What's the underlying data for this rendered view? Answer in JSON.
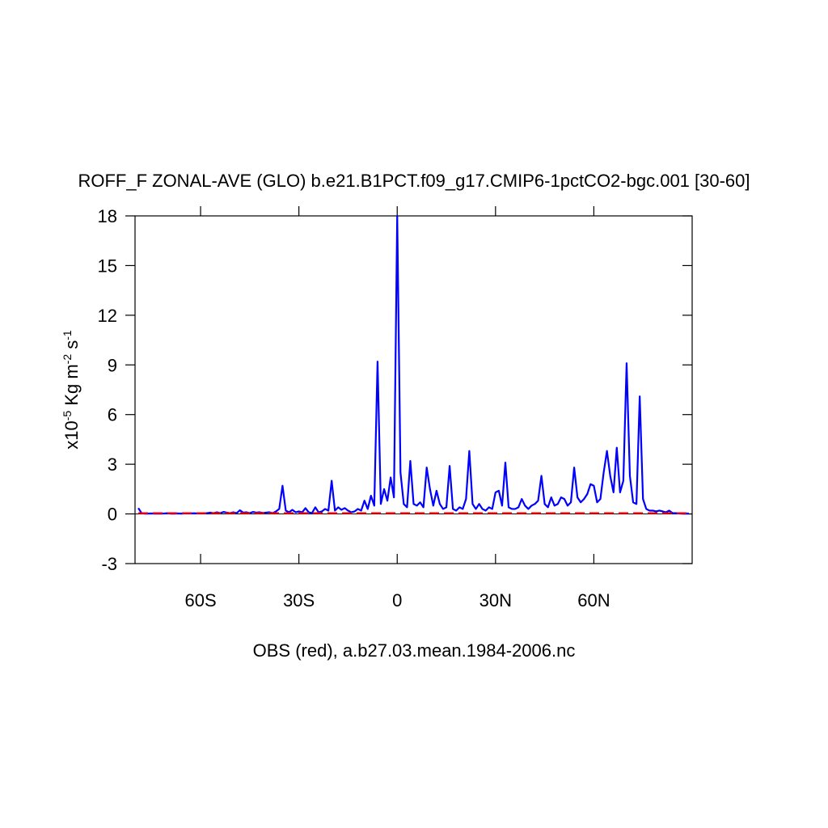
{
  "chart_data": {
    "type": "line",
    "title": "ROFF_F ZONAL-AVE (GLO) b.e21.B1PCT.f09_g17.CMIP6-1pctCO2-bgc.001 [30-60]",
    "xlabel": "OBS (red), a.b27.03.mean.1984-2006.nc",
    "ylabel": [
      "x10",
      "-5",
      " Kg m",
      "-2",
      " s",
      "-1"
    ],
    "xlim": [
      -80,
      90
    ],
    "ylim": [
      -3,
      18
    ],
    "xticks": [
      {
        "value": -60,
        "label": "60S"
      },
      {
        "value": -30,
        "label": "30S"
      },
      0,
      {
        "value": 30,
        "label": "30N"
      },
      {
        "value": 60,
        "label": "60N"
      }
    ],
    "yticks": [
      -3,
      0,
      3,
      6,
      9,
      12,
      15,
      18
    ],
    "series": [
      {
        "color": "#0000ff",
        "dash": false,
        "x": [
          -79,
          -78,
          -77,
          -76,
          -75,
          -74,
          -73,
          -72,
          -71,
          -70,
          -69,
          -68,
          -67,
          -66,
          -65,
          -64,
          -63,
          -62,
          -61,
          -60,
          -59,
          -58,
          -57,
          -56,
          -55,
          -54,
          -53,
          -52,
          -51,
          -50,
          -49,
          -48,
          -47,
          -46,
          -45,
          -44,
          -43,
          -42,
          -41,
          -40,
          -39,
          -38,
          -37,
          -36,
          -35,
          -34,
          -33,
          -32,
          -31,
          -30,
          -29,
          -28,
          -27,
          -26,
          -25,
          -24,
          -23,
          -22,
          -21,
          -20,
          -19,
          -18,
          -17,
          -16,
          -15,
          -14,
          -13,
          -12,
          -11,
          -10,
          -9,
          -8,
          -7,
          -6,
          -5,
          -4,
          -3,
          -2,
          -1,
          0,
          1,
          2,
          3,
          4,
          5,
          6,
          7,
          8,
          9,
          10,
          11,
          12,
          13,
          14,
          15,
          16,
          17,
          18,
          19,
          20,
          21,
          22,
          23,
          24,
          25,
          26,
          27,
          28,
          29,
          30,
          31,
          32,
          33,
          34,
          35,
          36,
          37,
          38,
          39,
          40,
          41,
          42,
          43,
          44,
          45,
          46,
          47,
          48,
          49,
          50,
          51,
          52,
          53,
          54,
          55,
          56,
          57,
          58,
          59,
          60,
          61,
          62,
          63,
          64,
          65,
          66,
          67,
          68,
          69,
          70,
          71,
          72,
          73,
          74,
          75,
          76,
          77,
          78,
          79,
          80,
          81,
          82,
          83,
          84,
          85,
          86,
          87,
          88,
          89
        ],
        "values": [
          0.35,
          0.05,
          0.02,
          0.02,
          0.03,
          0.02,
          0.02,
          0.02,
          0.03,
          0.05,
          0.02,
          0.02,
          0.03,
          0.02,
          0.03,
          0.05,
          0.03,
          0.04,
          0.03,
          0.05,
          0.04,
          0.05,
          0.08,
          0.05,
          0.1,
          0.05,
          0.12,
          0.08,
          0.05,
          0.1,
          0.05,
          0.22,
          0.08,
          0.1,
          0.05,
          0.12,
          0.08,
          0.1,
          0.06,
          0.08,
          0.1,
          0.05,
          0.15,
          0.3,
          1.7,
          0.2,
          0.1,
          0.25,
          0.1,
          0.15,
          0.1,
          0.35,
          0.1,
          0.05,
          0.4,
          0.1,
          0.15,
          0.3,
          0.2,
          2.0,
          0.2,
          0.4,
          0.25,
          0.35,
          0.2,
          0.1,
          0.15,
          0.3,
          0.2,
          0.8,
          0.3,
          1.1,
          0.5,
          9.2,
          0.6,
          1.5,
          0.8,
          2.2,
          1.0,
          18,
          2.5,
          0.6,
          0.4,
          3.2,
          0.6,
          0.5,
          0.7,
          0.4,
          2.8,
          1.5,
          0.5,
          1.4,
          0.6,
          0.3,
          0.4,
          2.9,
          0.3,
          0.2,
          0.4,
          0.3,
          0.9,
          3.8,
          0.6,
          0.3,
          0.6,
          0.3,
          0.2,
          0.4,
          0.3,
          1.3,
          1.4,
          0.5,
          3.1,
          0.4,
          0.3,
          0.3,
          0.4,
          0.9,
          0.5,
          0.3,
          0.5,
          0.6,
          0.8,
          2.3,
          0.6,
          0.4,
          1.0,
          0.5,
          0.6,
          1.0,
          0.9,
          0.5,
          0.7,
          2.8,
          1.0,
          0.7,
          0.9,
          1.2,
          1.8,
          1.7,
          0.7,
          0.9,
          2.5,
          3.8,
          2.3,
          1.3,
          4.0,
          1.3,
          2.0,
          9.1,
          2.3,
          0.7,
          0.6,
          7.1,
          0.9,
          0.3,
          0.2,
          0.2,
          0.15,
          0.2,
          0.15,
          0.1,
          0.2,
          0.05,
          0.05,
          0.03,
          0.02,
          0.02,
          0.02
        ]
      },
      {
        "color": "#ff0000",
        "dash": true,
        "x": [
          -79,
          -60,
          -40,
          -20,
          0,
          20,
          40,
          60,
          80,
          89
        ],
        "values": [
          0.05,
          0.05,
          0.05,
          0.05,
          0.05,
          0.05,
          0.05,
          0.05,
          0.05,
          0.05
        ]
      }
    ]
  }
}
